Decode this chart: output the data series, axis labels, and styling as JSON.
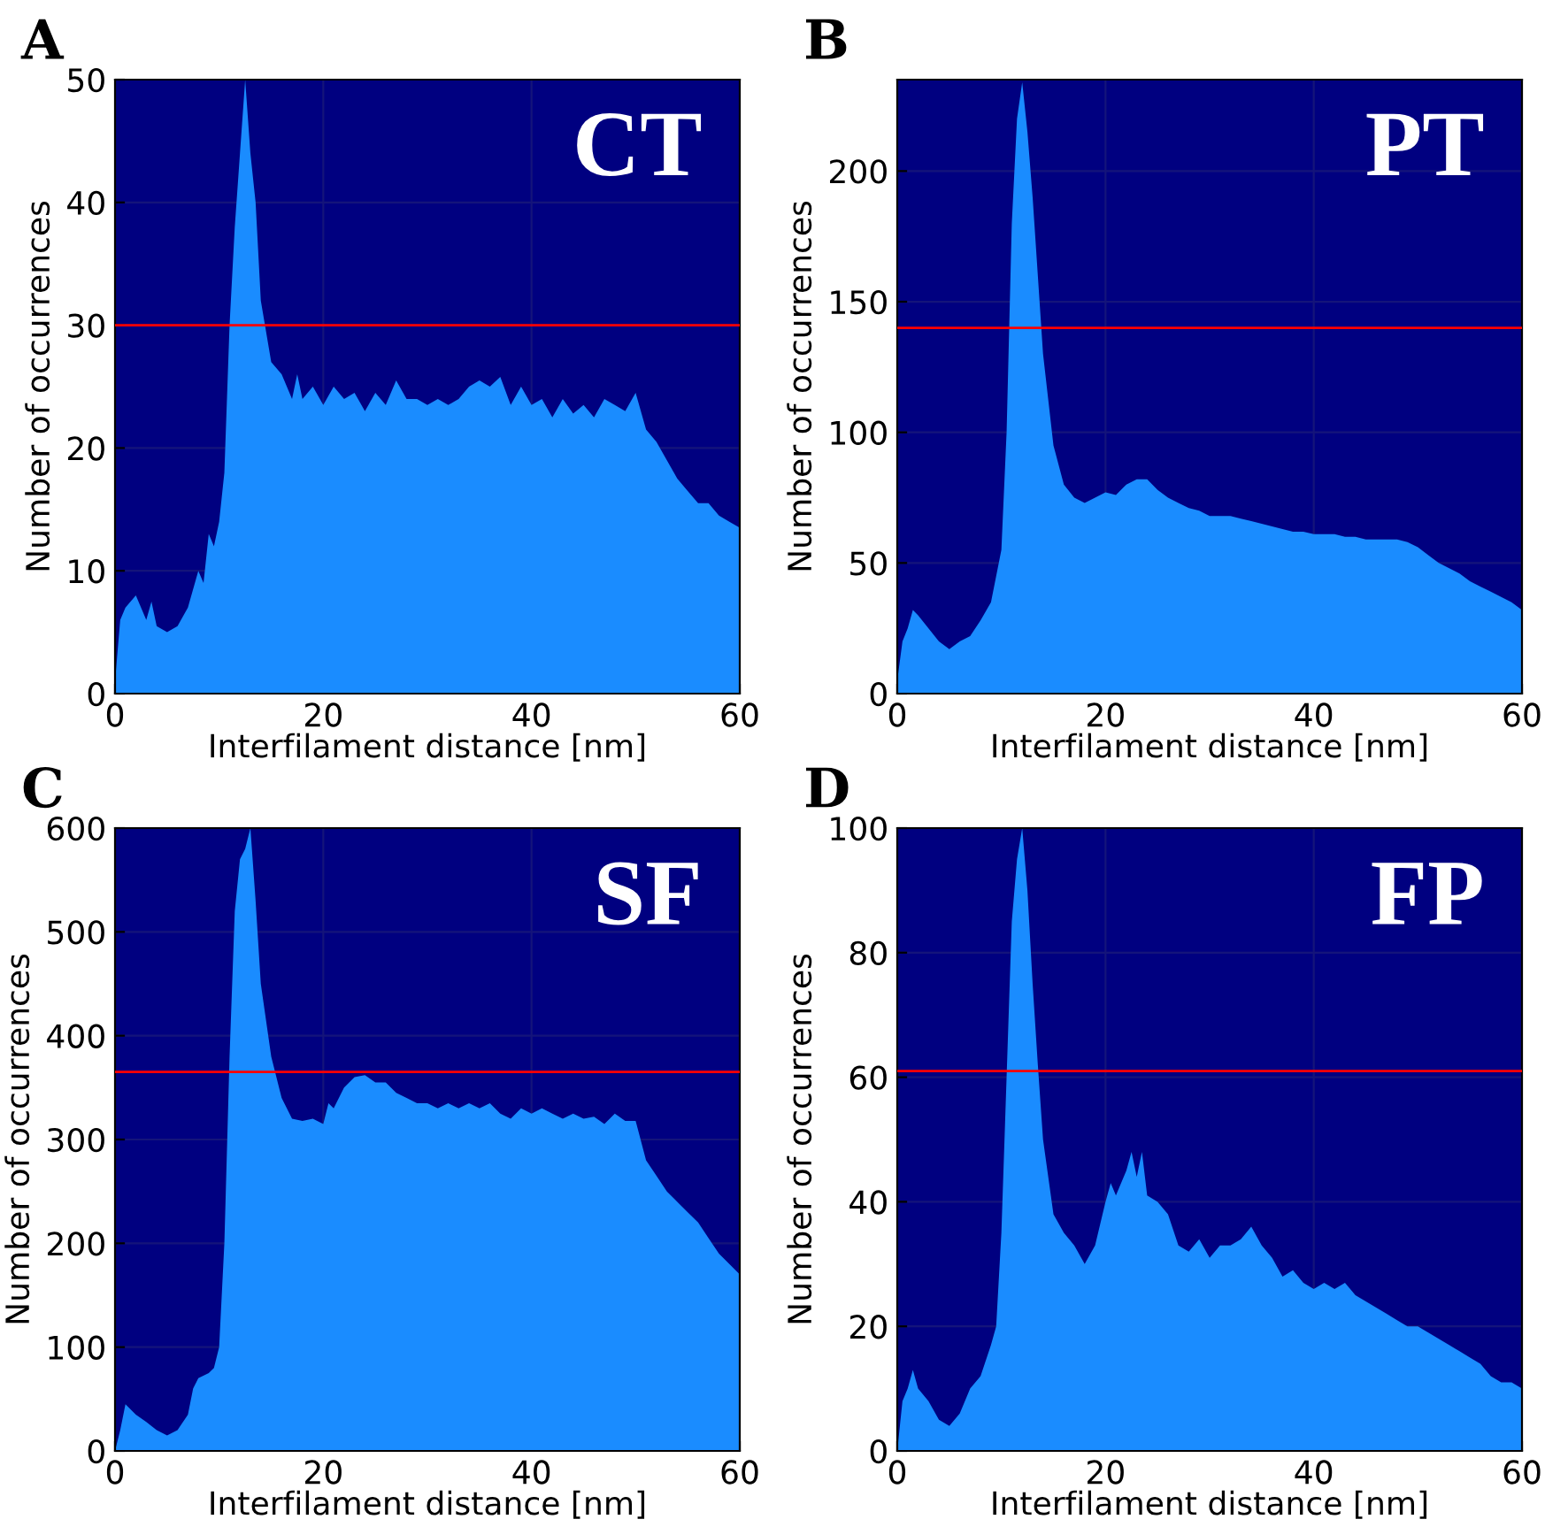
{
  "chart_data": [
    {
      "type": "area",
      "title": "A",
      "xlabel": "Interfilament distance [nm]",
      "ylabel": "Number of occurrences",
      "annotations": [
        "CT"
      ],
      "xlim": [
        0,
        60
      ],
      "xticks": [
        0,
        20,
        40,
        60
      ],
      "ylim": [
        0,
        50
      ],
      "yticks": [
        0,
        10,
        20,
        30,
        40,
        50
      ],
      "grid": true,
      "ref_lines": [
        {
          "axis": "y",
          "value": 30,
          "color": "#ff0000"
        }
      ],
      "series": [
        {
          "color": "#1a8cff",
          "x": [
            0,
            0.5,
            1,
            2,
            3,
            3.5,
            4,
            5,
            6,
            7,
            8,
            8.5,
            9,
            9.5,
            10,
            10.5,
            11,
            11.5,
            12,
            12.5,
            13,
            13.5,
            14,
            15,
            16,
            17,
            17.5,
            18,
            19,
            20,
            21,
            22,
            23,
            24,
            25,
            26,
            27,
            28,
            29,
            30,
            31,
            32,
            33,
            34,
            35,
            36,
            37,
            38,
            39,
            40,
            41,
            42,
            43,
            44,
            45,
            46,
            47,
            48,
            49,
            50,
            51,
            52,
            53,
            54,
            55,
            56,
            57,
            58,
            59,
            60
          ],
          "values": [
            1,
            6,
            7,
            8,
            6,
            7.5,
            5.5,
            5,
            5.5,
            7,
            10,
            9,
            13,
            12,
            14,
            18,
            30,
            38,
            44,
            50,
            44,
            40,
            32,
            27,
            26,
            24,
            26,
            24,
            25,
            23.5,
            25,
            24,
            24.5,
            23,
            24.5,
            23.5,
            25.5,
            24,
            24,
            23.5,
            24,
            23.5,
            24,
            25,
            25.5,
            25,
            25.8,
            23.5,
            25,
            23.5,
            24,
            22.5,
            24,
            22.8,
            23.5,
            22.5,
            24,
            23.5,
            23,
            24.5,
            21.5,
            20.5,
            19,
            17.5,
            16.5,
            15.5,
            15.5,
            14.5,
            14,
            13.5
          ]
        }
      ]
    },
    {
      "type": "area",
      "title": "B",
      "xlabel": "Interfilament distance [nm]",
      "ylabel": "Number of occurrences",
      "annotations": [
        "PT"
      ],
      "xlim": [
        0,
        60
      ],
      "xticks": [
        0,
        20,
        40,
        60
      ],
      "ylim": [
        0,
        235
      ],
      "yticks": [
        0,
        50,
        100,
        150,
        200
      ],
      "grid": true,
      "ref_lines": [
        {
          "axis": "y",
          "value": 140,
          "color": "#ff0000"
        }
      ],
      "series": [
        {
          "color": "#1a8cff",
          "x": [
            0,
            0.5,
            1,
            1.5,
            2,
            3,
            4,
            5,
            6,
            7,
            8,
            9,
            10,
            10.5,
            11,
            11.5,
            12,
            12.5,
            13,
            14,
            15,
            16,
            17,
            18,
            19,
            20,
            21,
            22,
            23,
            24,
            25,
            26,
            27,
            28,
            29,
            30,
            31,
            32,
            33,
            34,
            35,
            36,
            37,
            38,
            39,
            40,
            41,
            42,
            43,
            44,
            45,
            46,
            47,
            48,
            49,
            50,
            51,
            52,
            53,
            54,
            55,
            56,
            57,
            58,
            59,
            60
          ],
          "values": [
            5,
            20,
            25,
            32,
            30,
            25,
            20,
            17,
            20,
            22,
            28,
            35,
            55,
            100,
            180,
            220,
            234,
            215,
            190,
            130,
            95,
            80,
            75,
            73,
            75,
            77,
            76,
            80,
            82,
            82,
            78,
            75,
            73,
            71,
            70,
            68,
            68,
            68,
            67,
            66,
            65,
            64,
            63,
            62,
            62,
            61,
            61,
            61,
            60,
            60,
            59,
            59,
            59,
            59,
            58,
            56,
            53,
            50,
            48,
            46,
            43,
            41,
            39,
            37,
            35,
            32
          ]
        }
      ]
    },
    {
      "type": "area",
      "title": "C",
      "xlabel": "Interfilament distance [nm]",
      "ylabel": "Number of occurrences",
      "annotations": [
        "SF"
      ],
      "xlim": [
        0,
        60
      ],
      "xticks": [
        0,
        20,
        40,
        60
      ],
      "ylim": [
        0,
        600
      ],
      "yticks": [
        0,
        100,
        200,
        300,
        400,
        500,
        600
      ],
      "grid": true,
      "ref_lines": [
        {
          "axis": "y",
          "value": 365,
          "color": "#ff0000"
        }
      ],
      "series": [
        {
          "color": "#1a8cff",
          "x": [
            0,
            0.5,
            1,
            2,
            3,
            4,
            5,
            6,
            7,
            7.5,
            8,
            9,
            9.5,
            10,
            10.5,
            11,
            11.5,
            12,
            12.5,
            13,
            13.5,
            14,
            15,
            16,
            17,
            18,
            19,
            20,
            20.5,
            21,
            22,
            23,
            24,
            25,
            26,
            27,
            28,
            29,
            30,
            31,
            32,
            33,
            34,
            35,
            36,
            37,
            38,
            39,
            40,
            41,
            42,
            43,
            44,
            45,
            46,
            47,
            48,
            49,
            50,
            51,
            52,
            53,
            54,
            55,
            56,
            57,
            58,
            59,
            60
          ],
          "values": [
            0,
            20,
            45,
            35,
            28,
            20,
            15,
            20,
            35,
            60,
            70,
            75,
            80,
            100,
            200,
            380,
            520,
            570,
            580,
            600,
            530,
            450,
            380,
            340,
            320,
            318,
            320,
            315,
            335,
            330,
            350,
            360,
            362,
            355,
            355,
            345,
            340,
            335,
            335,
            330,
            335,
            330,
            335,
            330,
            335,
            325,
            320,
            330,
            325,
            330,
            325,
            320,
            325,
            320,
            322,
            315,
            325,
            318,
            318,
            280,
            265,
            250,
            240,
            230,
            220,
            205,
            190,
            180,
            170
          ]
        }
      ]
    },
    {
      "type": "area",
      "title": "D",
      "xlabel": "Interfilament distance [nm]",
      "ylabel": "Number of occurrences",
      "annotations": [
        "FP"
      ],
      "xlim": [
        0,
        60
      ],
      "xticks": [
        0,
        20,
        40,
        60
      ],
      "ylim": [
        0,
        100
      ],
      "yticks": [
        0,
        20,
        40,
        60,
        80,
        100
      ],
      "grid": true,
      "ref_lines": [
        {
          "axis": "y",
          "value": 61,
          "color": "#ff0000"
        }
      ],
      "series": [
        {
          "color": "#1a8cff",
          "x": [
            0,
            0.5,
            1,
            1.5,
            2,
            3,
            4,
            5,
            6,
            7,
            8,
            9,
            9.5,
            10,
            10.5,
            11,
            11.5,
            12,
            12.5,
            13,
            13.5,
            14,
            15,
            16,
            17,
            18,
            19,
            20,
            20.5,
            21,
            22,
            22.5,
            23,
            23.5,
            24,
            25,
            26,
            27,
            28,
            29,
            30,
            31,
            32,
            33,
            34,
            35,
            36,
            37,
            38,
            39,
            40,
            41,
            42,
            43,
            44,
            45,
            46,
            47,
            48,
            49,
            50,
            51,
            52,
            53,
            54,
            55,
            56,
            57,
            58,
            59,
            60
          ],
          "values": [
            0,
            8,
            10,
            13,
            10,
            8,
            5,
            4,
            6,
            10,
            12,
            17,
            20,
            35,
            60,
            85,
            95,
            100,
            90,
            75,
            62,
            50,
            38,
            35,
            33,
            30,
            33,
            40,
            43,
            41,
            45,
            48,
            44,
            48,
            41,
            40,
            38,
            33,
            32,
            34,
            31,
            33,
            33,
            34,
            36,
            33,
            31,
            28,
            29,
            27,
            26,
            27,
            26,
            27,
            25,
            24,
            23,
            22,
            21,
            20,
            20,
            19,
            18,
            17,
            16,
            15,
            14,
            12,
            11,
            11,
            10
          ]
        }
      ]
    }
  ]
}
